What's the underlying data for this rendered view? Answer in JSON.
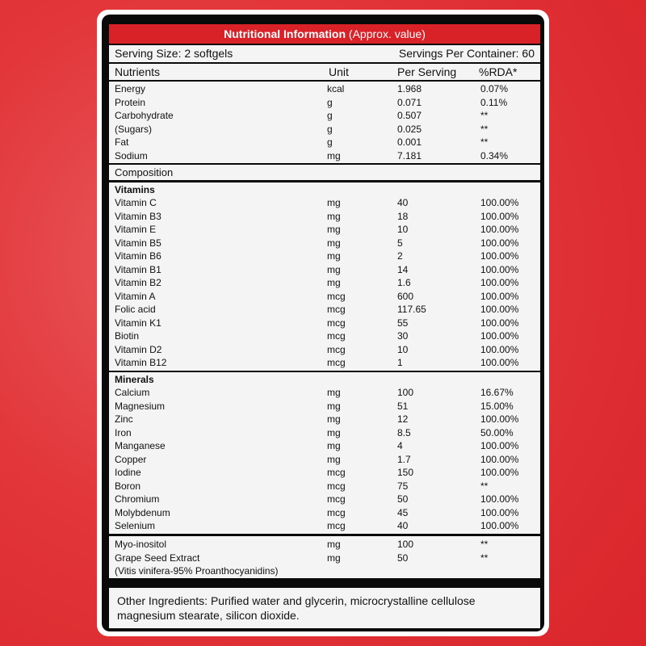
{
  "header": {
    "title_bold": "Nutritional Information",
    "title_rest": "(Approx. value)"
  },
  "serving": {
    "size": "Serving Size: 2 softgels",
    "per_container": "Servings Per Container: 60"
  },
  "columns": {
    "nutrients": "Nutrients",
    "unit": "Unit",
    "per_serving": "Per Serving",
    "rda": "%RDA*"
  },
  "basic": [
    {
      "name": "Energy",
      "unit": "kcal",
      "amount": "1.968",
      "rda": "0.07%"
    },
    {
      "name": "Protein",
      "unit": "g",
      "amount": "0.071",
      "rda": "0.11%"
    },
    {
      "name": "Carbohydrate",
      "unit": "g",
      "amount": "0.507",
      "rda": "**"
    },
    {
      "name": "(Sugars)",
      "unit": "g",
      "amount": "0.025",
      "rda": "**"
    },
    {
      "name": "Fat",
      "unit": "g",
      "amount": "0.001",
      "rda": "**"
    },
    {
      "name": "Sodium",
      "unit": "mg",
      "amount": "7.181",
      "rda": "0.34%"
    }
  ],
  "composition_label": "Composition",
  "vitamins": {
    "title": "Vitamins",
    "items": [
      {
        "name": "Vitamin C",
        "unit": "mg",
        "amount": "40",
        "rda": "100.00%"
      },
      {
        "name": "Vitamin B3",
        "unit": "mg",
        "amount": "18",
        "rda": "100.00%"
      },
      {
        "name": "Vitamin E",
        "unit": "mg",
        "amount": "10",
        "rda": "100.00%"
      },
      {
        "name": "Vitamin B5",
        "unit": "mg",
        "amount": "5",
        "rda": "100.00%"
      },
      {
        "name": "Vitamin B6",
        "unit": "mg",
        "amount": "2",
        "rda": "100.00%"
      },
      {
        "name": "Vitamin B1",
        "unit": "mg",
        "amount": "14",
        "rda": "100.00%"
      },
      {
        "name": "Vitamin B2",
        "unit": "mg",
        "amount": "1.6",
        "rda": "100.00%"
      },
      {
        "name": "Vitamin A",
        "unit": "mcg",
        "amount": "600",
        "rda": "100.00%"
      },
      {
        "name": "Folic acid",
        "unit": "mcg",
        "amount": "117.65",
        "rda": "100.00%"
      },
      {
        "name": "Vitamin K1",
        "unit": "mcg",
        "amount": "55",
        "rda": "100.00%"
      },
      {
        "name": "Biotin",
        "unit": "mcg",
        "amount": "30",
        "rda": "100.00%"
      },
      {
        "name": "Vitamin D2",
        "unit": "mcg",
        "amount": "10",
        "rda": "100.00%"
      },
      {
        "name": "Vitamin B12",
        "unit": "mcg",
        "amount": "1",
        "rda": "100.00%"
      }
    ]
  },
  "minerals": {
    "title": "Minerals",
    "items": [
      {
        "name": "Calcium",
        "unit": "mg",
        "amount": "100",
        "rda": "16.67%"
      },
      {
        "name": "Magnesium",
        "unit": "mg",
        "amount": "51",
        "rda": "15.00%"
      },
      {
        "name": "Zinc",
        "unit": "mg",
        "amount": "12",
        "rda": "100.00%"
      },
      {
        "name": "Iron",
        "unit": "mg",
        "amount": "8.5",
        "rda": "50.00%"
      },
      {
        "name": "Manganese",
        "unit": "mg",
        "amount": "4",
        "rda": "100.00%"
      },
      {
        "name": "Copper",
        "unit": "mg",
        "amount": "1.7",
        "rda": "100.00%"
      },
      {
        "name": "Iodine",
        "unit": "mcg",
        "amount": "150",
        "rda": "100.00%"
      },
      {
        "name": "Boron",
        "unit": "mcg",
        "amount": "75",
        "rda": "**"
      },
      {
        "name": "Chromium",
        "unit": "mcg",
        "amount": "50",
        "rda": "100.00%"
      },
      {
        "name": "Molybdenum",
        "unit": "mcg",
        "amount": "45",
        "rda": "100.00%"
      },
      {
        "name": "Selenium",
        "unit": "mcg",
        "amount": "40",
        "rda": "100.00%"
      }
    ]
  },
  "extras": [
    {
      "name": "Myo-inositol",
      "unit": "mg",
      "amount": "100",
      "rda": "**"
    },
    {
      "name": "Grape Seed Extract",
      "unit": "mg",
      "amount": "50",
      "rda": "**"
    },
    {
      "name": "(Vitis vinifera-95% Proanthocyanidins)",
      "unit": "",
      "amount": "",
      "rda": ""
    }
  ],
  "other_ingredients": "Other Ingredients: Purified water and glycerin, microcrystalline cellulose magnesium stearate, silicon dioxide."
}
